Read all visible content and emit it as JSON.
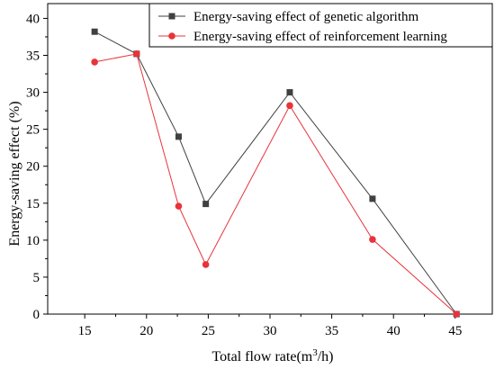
{
  "chart_data": {
    "type": "line",
    "title": "",
    "xlabel": "Total flow rate(m³/h)",
    "ylabel": "Energy-saving effect (%)",
    "xlim": [
      12,
      48
    ],
    "ylim": [
      0,
      42
    ],
    "xticks": [
      "15",
      "20",
      "25",
      "30",
      "35",
      "40",
      "45"
    ],
    "yticks": [
      "0",
      "5",
      "10",
      "15",
      "20",
      "25",
      "30",
      "35",
      "40"
    ],
    "grid": false,
    "legend_position": "top-right",
    "series": [
      {
        "name": "Energy-saving effect of genetic algorithm",
        "color": "#404040",
        "marker": "square",
        "x": [
          15.8,
          19.2,
          22.6,
          24.8,
          31.6,
          38.3,
          45.1
        ],
        "values": [
          38.2,
          35.2,
          24.0,
          14.9,
          30.0,
          15.6,
          0.0
        ]
      },
      {
        "name": "Energy-saving effect of reinforcement learning",
        "color": "#e8333a",
        "marker": "circle",
        "x": [
          15.8,
          19.2,
          22.6,
          24.8,
          31.6,
          38.3,
          45.1
        ],
        "values": [
          34.1,
          35.2,
          14.6,
          6.7,
          28.2,
          10.1,
          0.0
        ]
      }
    ]
  }
}
